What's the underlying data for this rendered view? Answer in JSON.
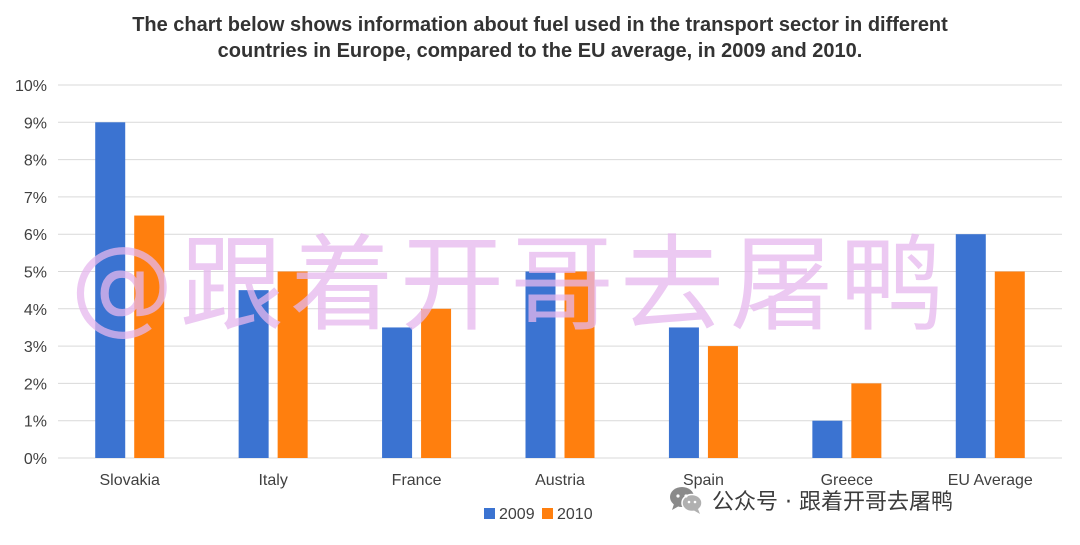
{
  "title_line1": "The chart below shows information about fuel used in the transport sector in different",
  "title_line2": "countries in Europe, compared to the EU average, in 2009 and 2010.",
  "watermark_center": "@跟着开哥去屠鸭",
  "watermark_bottom": "公众号 · 跟着开哥去屠鸭",
  "colors": {
    "s2009": "#3b73d1",
    "s2010": "#ff7f0e",
    "grid": "#d9d9d9",
    "text": "#404040"
  },
  "chart_data": {
    "type": "bar",
    "categories": [
      "Slovakia",
      "Italy",
      "France",
      "Austria",
      "Spain",
      "Greece",
      "EU Average"
    ],
    "series": [
      {
        "name": "2009",
        "values": [
          9,
          4.5,
          3.5,
          5,
          3.5,
          1,
          6
        ]
      },
      {
        "name": "2010",
        "values": [
          6.5,
          5,
          4,
          5,
          3,
          2,
          5
        ]
      }
    ],
    "ylim": [
      0,
      10
    ],
    "yticks": [
      "0%",
      "1%",
      "2%",
      "3%",
      "4%",
      "5%",
      "6%",
      "7%",
      "8%",
      "9%",
      "10%"
    ],
    "xlabel": "",
    "ylabel": "",
    "grid": true,
    "legend_position": "bottom"
  }
}
